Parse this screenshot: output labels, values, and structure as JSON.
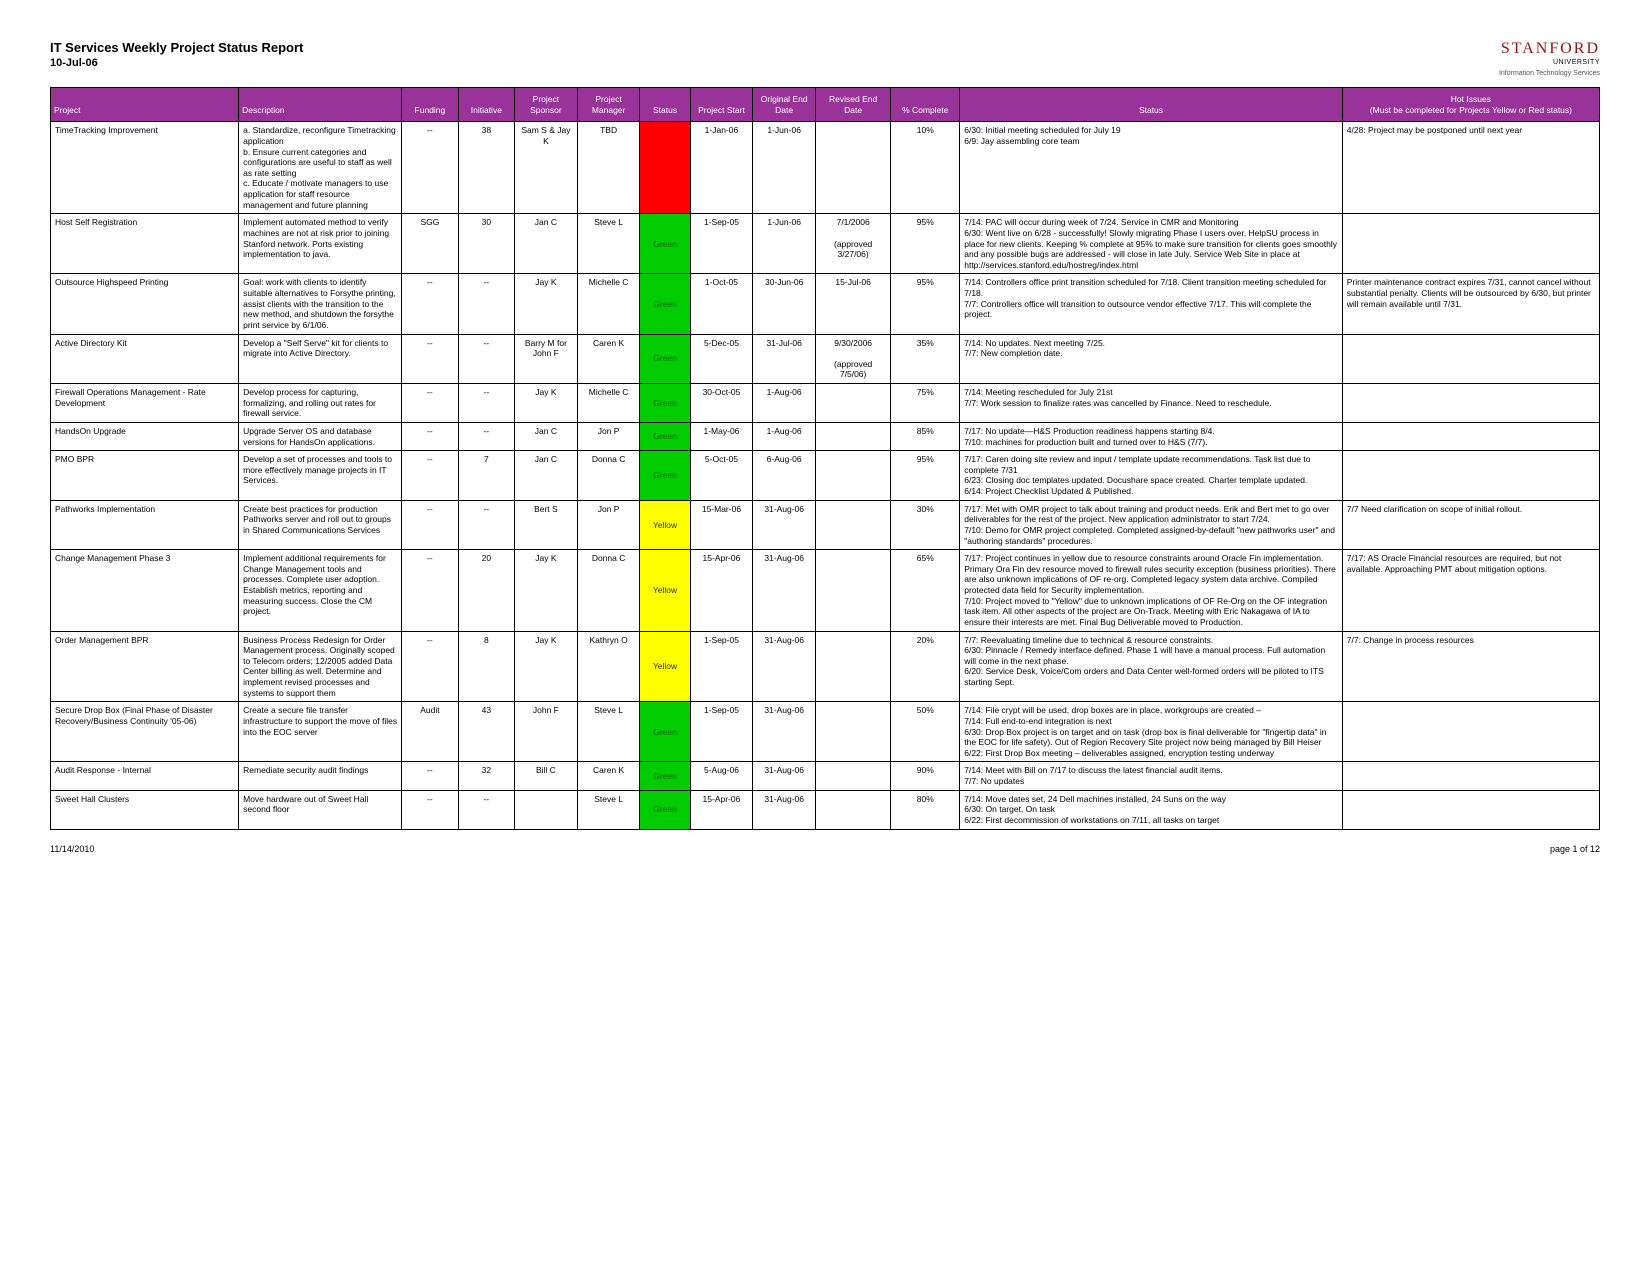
{
  "header": {
    "title": "IT Services Weekly Project Status Report",
    "date": "10-Jul-06",
    "brand_name": "STANFORD",
    "brand_sub": "UNIVERSITY",
    "brand_tag": "Information Technology Services"
  },
  "columns": [
    "Project",
    "Description",
    "Funding",
    "Initiative",
    "Project Sponsor",
    "Project Manager",
    "Status",
    "Project Start",
    "Original End Date",
    "Revised End Date",
    "% Complete",
    "Status",
    "Hot Issues\n(Must be completed for Projects Yellow or Red status)"
  ],
  "status_colors": {
    "Red": "#ff0000",
    "Green": "#00cc00",
    "Yellow": "#ffff00"
  },
  "status_text_colors": {
    "Red": "#ff0000",
    "Green": "#006600",
    "Yellow": "#333300"
  },
  "rows": [
    {
      "project": "TimeTracking Improvement",
      "description": "a. Standardize, reconfigure Timetracking application\nb. Ensure current categories and configurations are useful to staff as well as rate setting\nc. Educate / motivate managers to use application for staff resource management and future planning",
      "funding": "--",
      "initiative": "38",
      "sponsor": "Sam S & Jay K",
      "manager": "TBD",
      "status": "Red",
      "start": "1-Jan-06",
      "end": "1-Jun-06",
      "revised": "",
      "complete": "10%",
      "note": "6/30: Initial meeting scheduled for July 19\n6/9: Jay assembling core team",
      "hot": "4/28: Project may be postponed until next year"
    },
    {
      "project": "Host Self Registration",
      "description": "Implement automated method to verify machines are not at risk prior to joining Stanford network. Ports existing implementation to java.",
      "funding": "SGG",
      "initiative": "30",
      "sponsor": "Jan C",
      "manager": "Steve L",
      "status": "Green",
      "start": "1-Sep-05",
      "end": "1-Jun-06",
      "revised": "7/1/2006\n\n(approved 3/27/06)",
      "complete": "95%",
      "note": "7/14: PAC will occur during week of 7/24. Service in CMR and Monitoring\n6/30: Went live on 6/28 - successfully! Slowly migrating Phase I users over, HelpSU process in place for new clients. Keeping % complete at 95% to make sure transition for clients goes smoothly and any possible bugs are addressed - will close in late July. Service Web Site in place at http://services.stanford.edu/hostreg/index.html",
      "hot": ""
    },
    {
      "project": "Outsource Highspeed Printing",
      "description": "Goal: work with clients to identify suitable alternatives to Forsythe printing, assist clients with the transition to the new method, and shutdown the forsythe print service by 6/1/06.",
      "funding": "--",
      "initiative": "--",
      "sponsor": "Jay K",
      "manager": "Michelle C",
      "status": "Green",
      "start": "1-Oct-05",
      "end": "30-Jun-06",
      "revised": "15-Jul-06",
      "complete": "95%",
      "note": "7/14: Controllers office print transition scheduled for 7/18. Client transition meeting scheduled for 7/18.\n7/7: Controllers office will transition to outsource vendor effective 7/17. This will complete the project.",
      "hot": "Printer maintenance contract expires 7/31, cannot cancel without substantial penalty. Clients will be outsourced by 6/30, but printer will remain available until 7/31."
    },
    {
      "project": "Active Directory Kit",
      "description": "Develop a \"Self Serve\" kit for clients to migrate into Active Directory.",
      "funding": "--",
      "initiative": "--",
      "sponsor": "Barry M for John F",
      "manager": "Caren K",
      "status": "Green",
      "start": "5-Dec-05",
      "end": "31-Jul-06",
      "revised": "9/30/2006\n\n(approved 7/5/06)",
      "complete": "35%",
      "note": "7/14: No updates. Next meeting 7/25.\n7/7: New completion date.",
      "hot": ""
    },
    {
      "project": "Firewall Operations Management - Rate Development",
      "description": "Develop process for capturing, formalizing, and rolling out rates for firewall service.",
      "funding": "--",
      "initiative": "--",
      "sponsor": "Jay K",
      "manager": "Michelle C",
      "status": "Green",
      "start": "30-Oct-05",
      "end": "1-Aug-06",
      "revised": "",
      "complete": "75%",
      "note": "7/14: Meeting rescheduled for July 21st\n7/7: Work session to finalize rates was cancelled by Finance. Need to reschedule.",
      "hot": ""
    },
    {
      "project": "HandsOn Upgrade",
      "description": "Upgrade Server OS and database versions for HandsOn applications.",
      "funding": "--",
      "initiative": "--",
      "sponsor": "Jan C",
      "manager": "Jon P",
      "status": "Green",
      "start": "1-May-06",
      "end": "1-Aug-06",
      "revised": "",
      "complete": "85%",
      "note": "7/17: No update—H&S Production readiness happens starting 8/4.\n7/10: machines for production built and turned over to H&S (7/7).",
      "hot": ""
    },
    {
      "project": "PMO BPR",
      "description": "Develop a set of processes and tools to more effectively manage projects in IT Services.",
      "funding": "--",
      "initiative": "7",
      "sponsor": "Jan C",
      "manager": "Donna C",
      "status": "Green",
      "start": "5-Oct-05",
      "end": "6-Aug-06",
      "revised": "",
      "complete": "95%",
      "note": "7/17: Caren doing site review and input / template update recommendations. Task list due to complete 7/31\n6/23: Closing doc templates updated. Docushare space created. Charter template updated.\n6/14: Project Checklist Updated & Published.",
      "hot": ""
    },
    {
      "project": "Pathworks Implementation",
      "description": "Create best practices for production Pathworks server and roll out to groups in Shared Communications Services",
      "funding": "--",
      "initiative": "--",
      "sponsor": "Bert S",
      "manager": "Jon P",
      "status": "Yellow",
      "start": "15-Mar-06",
      "end": "31-Aug-06",
      "revised": "",
      "complete": "30%",
      "note": "7/17: Met with OMR project to talk about training and product needs. Erik and Bert met to go over deliverables for the rest of the project. New application administrator to start 7/24.\n7/10: Demo for OMR project completed. Completed assigned-by-default \"new pathworks user\" and \"authoring standards\" procedures.",
      "hot": "7/7 Need clarification on scope of initial rollout."
    },
    {
      "project": "Change Management Phase 3",
      "description": "Implement additional requirements for Change Management tools and processes. Complete user adoption. Establish metrics, reporting and measuring success. Close the CM project.",
      "funding": "--",
      "initiative": "20",
      "sponsor": "Jay K",
      "manager": "Donna C",
      "status": "Yellow",
      "start": "15-Apr-06",
      "end": "31-Aug-06",
      "revised": "",
      "complete": "65%",
      "note": "7/17: Project continues in yellow due to resource constraints around Oracle Fin implementation. Primary Ora Fin dev resource moved to firewall rules security exception (business priorities). There are also unknown implications of OF re-org. Completed legacy system data archive. Compiled protected data field for Security implementation.\n7/10: Project moved to \"Yellow\" due to unknown implications of OF Re-Org on the OF integration task item. All other aspects of the project are On-Track. Meeting with Eric Nakagawa of IA to ensure their interests are met. Final Bug Deliverable moved to Production.",
      "hot": "7/17: AS Oracle Financial resources are required, but not available. Approaching PMT about mitigation options."
    },
    {
      "project": "Order Management BPR",
      "description": "Business Process Redesign for Order Management process. Originally scoped to Telecom orders; 12/2005 added Data Center billing as well. Determine and implement revised processes and systems to support them",
      "funding": "--",
      "initiative": "8",
      "sponsor": "Jay K",
      "manager": "Kathryn O",
      "status": "Yellow",
      "start": "1-Sep-05",
      "end": "31-Aug-06",
      "revised": "",
      "complete": "20%",
      "note": "7/7: Reevaluating timeline due to technical & resource constraints.\n6/30: Pinnacle / Remedy interface defined. Phase 1 will have a manual process. Full automation will come in the next phase.\n6/20: Service Desk, Voice/Com orders and Data Center well-formed orders will be piloted to ITS starting Sept.",
      "hot": "7/7: Change in process resources"
    },
    {
      "project": "Secure Drop Box (Final Phase of Disaster Recovery/Business Continuity '05-06)",
      "description": "Create a secure file transfer infrastructure to support the move of files into the EOC server",
      "funding": "Audit",
      "initiative": "43",
      "sponsor": "John F",
      "manager": "Steve L",
      "status": "Green",
      "start": "1-Sep-05",
      "end": "31-Aug-06",
      "revised": "",
      "complete": "50%",
      "note": "7/14: File crypt will be used, drop boxes are in place, workgroups are created –\n7/14: Full end-to-end integration is next\n6/30: Drop Box project is on target and on task (drop box is final deliverable for \"fingertip data\" in the EOC for life safety). Out of Region Recovery Site project now being managed by Bill Heiser\n6/22: First Drop Box meeting – deliverables assigned, encryption testing underway",
      "hot": ""
    },
    {
      "project": "Audit Response - Internal",
      "description": "Remediate security audit findings",
      "funding": "--",
      "initiative": "32",
      "sponsor": "Bill C",
      "manager": "Caren K",
      "status": "Green",
      "start": "5-Aug-06",
      "end": "31-Aug-06",
      "revised": "",
      "complete": "90%",
      "note": "7/14: Meet with Bill on 7/17 to discuss the latest financial audit items.\n7/7: No updates",
      "hot": ""
    },
    {
      "project": "Sweet Hall Clusters",
      "description": "Move hardware out of Sweet Hall second floor",
      "funding": "--",
      "initiative": "--",
      "sponsor": "",
      "manager": "Steve L",
      "status": "Green",
      "start": "15-Apr-06",
      "end": "31-Aug-06",
      "revised": "",
      "complete": "80%",
      "note": "7/14: Move dates set, 24 Dell machines installed, 24 Suns on the way\n6/30: On target, On task\n6/22: First decommission of workstations on 7/11, all tasks on target",
      "hot": ""
    }
  ],
  "footer": {
    "date": "11/14/2010",
    "page": "page 1 of 12"
  }
}
